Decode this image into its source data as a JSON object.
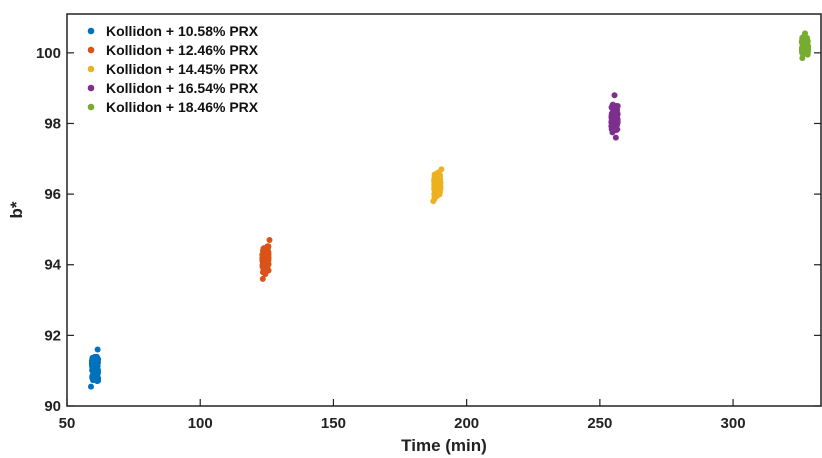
{
  "chart_data": {
    "type": "scatter",
    "title": "",
    "xlabel": "Time (min)",
    "ylabel": "b*",
    "xlim": [
      50,
      333
    ],
    "ylim": [
      90,
      101.1
    ],
    "xticks": [
      50,
      100,
      150,
      200,
      250,
      300
    ],
    "yticks": [
      90,
      92,
      94,
      96,
      98,
      100
    ],
    "xtick_labels": [
      "50",
      "100",
      "150",
      "200",
      "250",
      "300"
    ],
    "ytick_labels": [
      "90",
      "92",
      "94",
      "96",
      "98",
      "100"
    ],
    "grid": false,
    "legend_position": "top-left",
    "series": [
      {
        "name": "Kollidon + 10.58% PRX",
        "color": "#0072BD",
        "x_range": [
          58.5,
          62.5
        ],
        "y_range": [
          90.5,
          91.65
        ],
        "points": [
          [
            60,
            91.1
          ],
          [
            61,
            91.3
          ],
          [
            59.5,
            90.8
          ],
          [
            61.5,
            91.6
          ],
          [
            59,
            90.55
          ]
        ]
      },
      {
        "name": "Kollidon + 12.46% PRX",
        "color": "#D95319",
        "x_range": [
          122.5,
          126.5
        ],
        "y_range": [
          93.55,
          94.75
        ],
        "points": [
          [
            124,
            93.9
          ],
          [
            125,
            94.2
          ],
          [
            123.5,
            93.6
          ],
          [
            126,
            94.7
          ],
          [
            124.5,
            94.05
          ]
        ]
      },
      {
        "name": "Kollidon + 14.45% PRX",
        "color": "#EDB120",
        "x_range": [
          187,
          191
        ],
        "y_range": [
          95.7,
          96.8
        ],
        "points": [
          [
            188.5,
            96.2
          ],
          [
            189.5,
            96.6
          ],
          [
            187.5,
            95.8
          ],
          [
            190.5,
            96.7
          ],
          [
            189,
            96.3
          ]
        ]
      },
      {
        "name": "Kollidon + 16.54% PRX",
        "color": "#7E2F8E",
        "x_range": [
          253.5,
          257.5
        ],
        "y_range": [
          97.55,
          98.8
        ],
        "points": [
          [
            255,
            98.2
          ],
          [
            256,
            98.5
          ],
          [
            256,
            97.6
          ],
          [
            255.5,
            98.8
          ],
          [
            256.5,
            98.1
          ]
        ]
      },
      {
        "name": "Kollidon + 18.46% PRX",
        "color": "#77AC30",
        "x_range": [
          325,
          329
        ],
        "y_range": [
          99.8,
          100.6
        ],
        "points": [
          [
            326.5,
            100.1
          ],
          [
            327.5,
            100.4
          ],
          [
            326,
            99.85
          ],
          [
            327,
            100.55
          ],
          [
            328,
            100.2
          ]
        ]
      }
    ]
  }
}
